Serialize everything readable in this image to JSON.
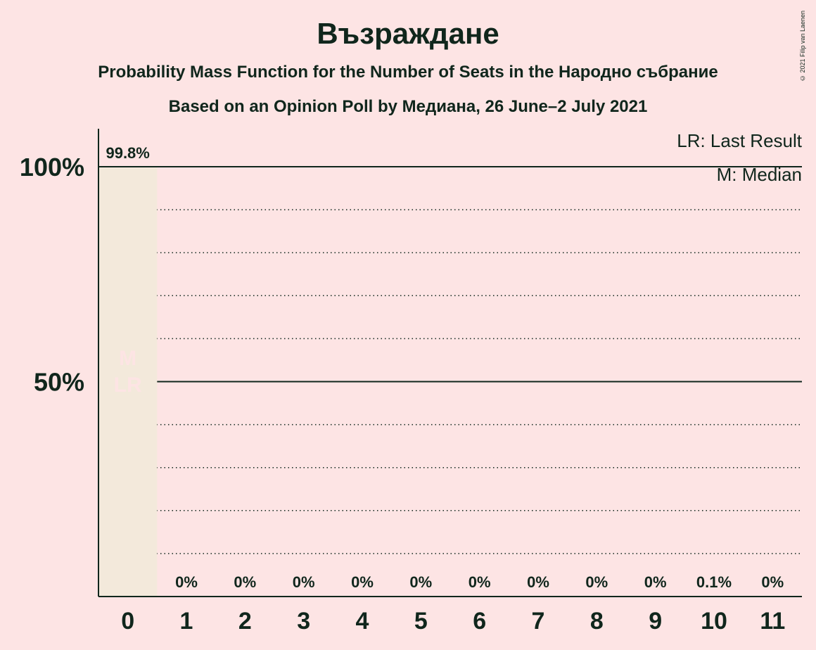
{
  "header": {
    "title": "Възраждане",
    "subtitle": "Probability Mass Function for the Number of Seats in the Народно събрание",
    "subtitle2": "Based on an Opinion Poll by Медиана, 26 June–2 July 2021"
  },
  "copyright": "© 2021 Filip van Laenen",
  "chart_data": {
    "type": "bar",
    "categories": [
      "0",
      "1",
      "2",
      "3",
      "4",
      "5",
      "6",
      "7",
      "8",
      "9",
      "10",
      "11"
    ],
    "values": [
      99.8,
      0,
      0,
      0,
      0,
      0,
      0,
      0,
      0,
      0,
      0.1,
      0
    ],
    "value_labels": [
      "99.8%",
      "0%",
      "0%",
      "0%",
      "0%",
      "0%",
      "0%",
      "0%",
      "0%",
      "0%",
      "0.1%",
      "0%"
    ],
    "ylim": [
      0,
      100
    ],
    "yticks": [
      {
        "value": 50,
        "label": "50%"
      },
      {
        "value": 100,
        "label": "100%"
      }
    ],
    "minor_grid_step": 10,
    "median": 0,
    "last_result": 0,
    "bar_markers": {
      "median": "M",
      "last_result": "LR"
    },
    "legend": {
      "position": "top-right",
      "items": [
        "LR: Last Result",
        "M: Median"
      ]
    },
    "colors": {
      "bar": "#f3e9db",
      "background": "#fde4e4",
      "text": "#10261c",
      "marker_text": "#fde4e4"
    }
  }
}
